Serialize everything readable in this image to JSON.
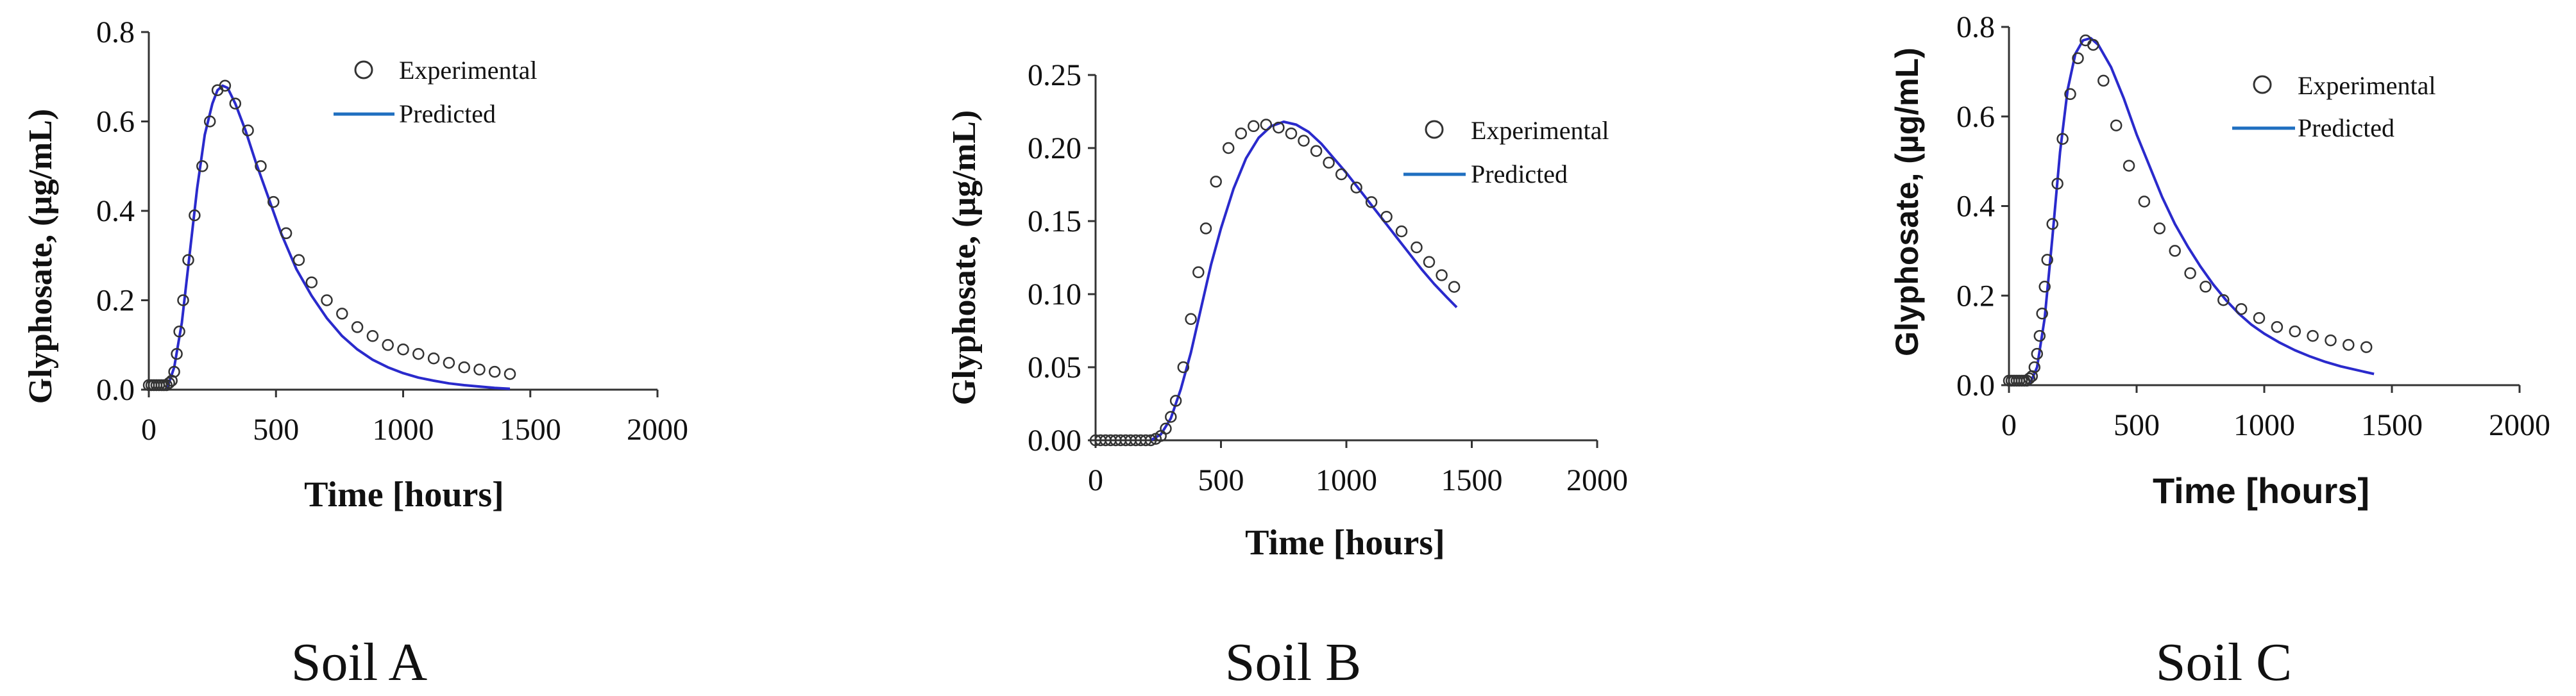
{
  "chart_data": [
    {
      "type": "scatter",
      "caption": "Soil A",
      "xlabel": "Time [hours]",
      "ylabel": "Glyphosate, (µg/mL)",
      "xlim": [
        0,
        2000
      ],
      "ylim": [
        0,
        0.8
      ],
      "xticks": [
        0,
        500,
        1000,
        1500,
        2000
      ],
      "yticks": [
        0,
        0.2,
        0.4,
        0.6,
        0.8
      ],
      "ytick_labels": [
        "0.0",
        "0.2",
        "0.4",
        "0.6",
        "0.8"
      ],
      "legend": [
        "Experimental",
        "Predicted"
      ],
      "series": [
        {
          "name": "Experimental",
          "style": "open-circle",
          "x": [
            0,
            10,
            20,
            30,
            40,
            50,
            60,
            70,
            80,
            90,
            100,
            110,
            120,
            135,
            155,
            180,
            210,
            240,
            270,
            300,
            340,
            390,
            440,
            490,
            540,
            590,
            640,
            700,
            760,
            820,
            880,
            940,
            1000,
            1060,
            1120,
            1180,
            1240,
            1300,
            1360,
            1420
          ],
          "y": [
            0.01,
            0.01,
            0.01,
            0.01,
            0.01,
            0.01,
            0.01,
            0.01,
            0.015,
            0.02,
            0.04,
            0.08,
            0.13,
            0.2,
            0.29,
            0.39,
            0.5,
            0.6,
            0.67,
            0.68,
            0.64,
            0.58,
            0.5,
            0.42,
            0.35,
            0.29,
            0.24,
            0.2,
            0.17,
            0.14,
            0.12,
            0.1,
            0.09,
            0.08,
            0.07,
            0.06,
            0.05,
            0.045,
            0.04,
            0.035
          ]
        },
        {
          "name": "Predicted",
          "style": "line",
          "color": "#2a2acc",
          "x": [
            70,
            100,
            130,
            160,
            190,
            220,
            250,
            270,
            290,
            310,
            340,
            380,
            420,
            470,
            520,
            580,
            640,
            700,
            760,
            820,
            880,
            940,
            1000,
            1060,
            1120,
            1180,
            1240,
            1300,
            1360,
            1420
          ],
          "y": [
            0.0,
            0.05,
            0.15,
            0.3,
            0.45,
            0.57,
            0.64,
            0.67,
            0.68,
            0.675,
            0.64,
            0.58,
            0.51,
            0.43,
            0.35,
            0.27,
            0.21,
            0.16,
            0.12,
            0.09,
            0.067,
            0.05,
            0.037,
            0.027,
            0.02,
            0.014,
            0.01,
            0.007,
            0.004,
            0.002
          ]
        }
      ]
    },
    {
      "type": "scatter",
      "caption": "Soil B",
      "xlabel": "Time [hours]",
      "ylabel": "Glyphosate, (µg/mL)",
      "xlim": [
        0,
        2000
      ],
      "ylim": [
        0,
        0.25
      ],
      "xticks": [
        0,
        500,
        1000,
        1500,
        2000
      ],
      "yticks": [
        0,
        0.05,
        0.1,
        0.15,
        0.2,
        0.25
      ],
      "ytick_labels": [
        "0.00",
        "0.05",
        "0.10",
        "0.15",
        "0.20",
        "0.25"
      ],
      "legend": [
        "Experimental",
        "Predicted"
      ],
      "series": [
        {
          "name": "Experimental",
          "style": "open-circle",
          "x": [
            0,
            20,
            40,
            60,
            80,
            100,
            120,
            140,
            160,
            180,
            200,
            220,
            240,
            260,
            280,
            300,
            320,
            350,
            380,
            410,
            440,
            480,
            530,
            580,
            630,
            680,
            730,
            780,
            830,
            880,
            930,
            980,
            1040,
            1100,
            1160,
            1220,
            1280,
            1330,
            1380,
            1430
          ],
          "y": [
            0,
            0,
            0,
            0,
            0,
            0,
            0,
            0,
            0,
            0,
            0,
            0,
            0.001,
            0.003,
            0.008,
            0.016,
            0.027,
            0.05,
            0.083,
            0.115,
            0.145,
            0.177,
            0.2,
            0.21,
            0.215,
            0.216,
            0.214,
            0.21,
            0.205,
            0.198,
            0.19,
            0.182,
            0.173,
            0.163,
            0.153,
            0.143,
            0.132,
            0.122,
            0.113,
            0.105
          ]
        },
        {
          "name": "Predicted",
          "style": "line",
          "color": "#2a2acc",
          "x": [
            220,
            260,
            300,
            340,
            380,
            420,
            460,
            500,
            550,
            600,
            650,
            700,
            750,
            800,
            850,
            900,
            950,
            1000,
            1050,
            1100,
            1150,
            1200,
            1250,
            1300,
            1350,
            1400,
            1440
          ],
          "y": [
            0.0,
            0.004,
            0.015,
            0.035,
            0.06,
            0.09,
            0.12,
            0.145,
            0.172,
            0.193,
            0.207,
            0.215,
            0.218,
            0.216,
            0.211,
            0.203,
            0.193,
            0.183,
            0.172,
            0.161,
            0.15,
            0.139,
            0.128,
            0.117,
            0.107,
            0.098,
            0.091
          ]
        }
      ]
    },
    {
      "type": "scatter",
      "caption": "Soil C",
      "xlabel": "Time [hours]",
      "ylabel": "Glyphosate, (µg/mL)",
      "xlim": [
        0,
        2000
      ],
      "ylim": [
        0,
        0.8
      ],
      "xticks": [
        0,
        500,
        1000,
        1500,
        2000
      ],
      "yticks": [
        0,
        0.2,
        0.4,
        0.6,
        0.8
      ],
      "ytick_labels": [
        "0.0",
        "0.2",
        "0.4",
        "0.6",
        "0.8"
      ],
      "legend": [
        "Experimental",
        "Predicted"
      ],
      "series": [
        {
          "name": "Experimental",
          "style": "open-circle",
          "x": [
            0,
            10,
            20,
            30,
            40,
            50,
            60,
            70,
            80,
            90,
            100,
            110,
            120,
            130,
            140,
            150,
            170,
            190,
            210,
            240,
            270,
            300,
            330,
            370,
            420,
            470,
            530,
            590,
            650,
            710,
            770,
            840,
            910,
            980,
            1050,
            1120,
            1190,
            1260,
            1330,
            1400
          ],
          "y": [
            0.01,
            0.01,
            0.01,
            0.01,
            0.01,
            0.01,
            0.01,
            0.01,
            0.015,
            0.02,
            0.04,
            0.07,
            0.11,
            0.16,
            0.22,
            0.28,
            0.36,
            0.45,
            0.55,
            0.65,
            0.73,
            0.77,
            0.76,
            0.68,
            0.58,
            0.49,
            0.41,
            0.35,
            0.3,
            0.25,
            0.22,
            0.19,
            0.17,
            0.15,
            0.13,
            0.12,
            0.11,
            0.1,
            0.09,
            0.085
          ]
        },
        {
          "name": "Predicted",
          "style": "line",
          "color": "#2a2acc",
          "x": [
            80,
            110,
            140,
            170,
            200,
            230,
            260,
            290,
            320,
            350,
            400,
            450,
            500,
            550,
            600,
            650,
            700,
            750,
            800,
            850,
            900,
            950,
            1000,
            1060,
            1120,
            1180,
            1240,
            1300,
            1360,
            1430
          ],
          "y": [
            0.0,
            0.04,
            0.15,
            0.33,
            0.52,
            0.66,
            0.74,
            0.77,
            0.775,
            0.76,
            0.71,
            0.64,
            0.56,
            0.49,
            0.42,
            0.36,
            0.31,
            0.265,
            0.225,
            0.19,
            0.16,
            0.135,
            0.115,
            0.095,
            0.078,
            0.064,
            0.052,
            0.042,
            0.034,
            0.025
          ]
        }
      ]
    }
  ],
  "captions": [
    "Soil A",
    "Soil B",
    "Soil C"
  ],
  "colors": {
    "predicted_line": "#2a2acc",
    "legend_line": "#1f6fc0",
    "axis": "#333333"
  }
}
